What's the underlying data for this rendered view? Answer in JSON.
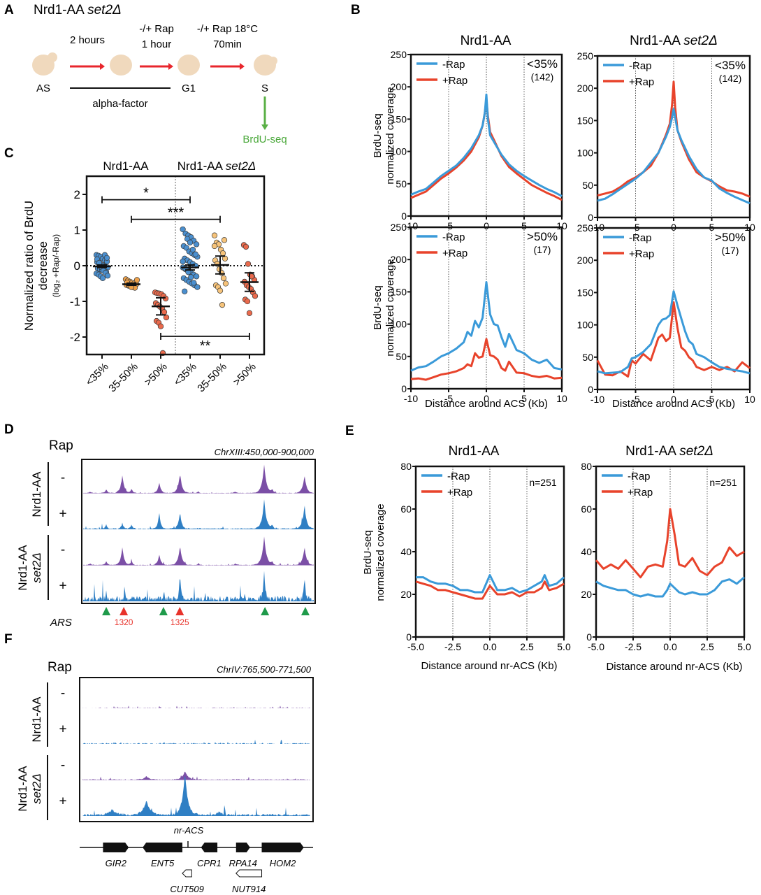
{
  "colors": {
    "minus_rap": "#3a9ad9",
    "plus_rap": "#e8432b",
    "track_purple": "#7b4fa6",
    "track_blue": "#2f7fc4",
    "ars_green": "#1f9a4a",
    "ars_red": "#e8332b",
    "brdu_green": "#5ab046",
    "arrow_red": "#e8262c",
    "cell_fill": "#f0d9bd",
    "dot_blue": "#4a8fcf",
    "dot_orange": "#f0a24a",
    "dot_orange_light": "#f6c37a",
    "dot_red": "#ea6a4c"
  },
  "panels": {
    "A": {
      "label": "A",
      "title_main": "Nrd1-AA ",
      "title_italic": "set2Δ",
      "steps": [
        {
          "top": "2 hours",
          "bottom": ""
        },
        {
          "top": "-/+ Rap",
          "bottom": "1 hour"
        },
        {
          "top": "-/+ Rap 18°C",
          "bottom": "70min"
        }
      ],
      "stages": [
        "AS",
        "",
        "G1",
        "S"
      ],
      "bar_label": "alpha-factor",
      "output_label": "BrdU-seq"
    },
    "B": {
      "label": "B",
      "col_titles": [
        {
          "main": "Nrd1-AA",
          "italic": ""
        },
        {
          "main": "Nrd1-AA ",
          "italic": "set2Δ"
        }
      ],
      "ylabel_line1": "BrdU-seq",
      "ylabel_line2": "normalized coverage",
      "xlabel": "Distance around ACS (Kb)",
      "legend": [
        "-Rap",
        "+Rap"
      ]
    },
    "C": {
      "label": "C",
      "group_titles": [
        {
          "main": "Nrd1-AA",
          "italic": ""
        },
        {
          "main": "Nrd1-AA ",
          "italic": "set2Δ"
        }
      ],
      "ylabel_line1": "Normalized ratio of BrdU",
      "ylabel_line2": "decrease",
      "ylabel_line3": "(log₂ +Rap/-Rap)",
      "significance": [
        {
          "label": "*",
          "from": 0,
          "to": 3,
          "y": 1.85
        },
        {
          "label": "***",
          "from": 1,
          "to": 4,
          "y": 1.3
        },
        {
          "label": "**",
          "from": 2,
          "to": 5,
          "y": -1.98
        }
      ]
    },
    "D": {
      "label": "D",
      "rap_header": "Rap",
      "region": "ChrXIII:450,000-900,000",
      "strain1": "Nrd1-AA",
      "strain2_line1": "Nrd1-AA",
      "strain2_line2": "set2Δ",
      "track_signs": [
        "-",
        "+",
        "-",
        "+"
      ],
      "ars_label": "ARS",
      "ars_markers": [
        {
          "pos": 0.105,
          "color": "green",
          "label": ""
        },
        {
          "pos": 0.18,
          "color": "red",
          "label": "1320"
        },
        {
          "pos": 0.35,
          "color": "green",
          "label": ""
        },
        {
          "pos": 0.42,
          "color": "red",
          "label": "1325"
        },
        {
          "pos": 0.785,
          "color": "green",
          "label": ""
        },
        {
          "pos": 0.958,
          "color": "green",
          "label": ""
        }
      ]
    },
    "E": {
      "label": "E",
      "col_titles": [
        {
          "main": "Nrd1-AA",
          "italic": ""
        },
        {
          "main": "Nrd1-AA ",
          "italic": "set2Δ"
        }
      ],
      "ylabel_line1": "BrdU-seq",
      "ylabel_line2": "normalized coverage",
      "xlabel": "Distance around nr-ACS (Kb)",
      "legend": [
        "-Rap",
        "+Rap"
      ],
      "annotation": "n=251"
    },
    "F": {
      "label": "F",
      "rap_header": "Rap",
      "region": "ChrIV:765,500-771,500",
      "strain1": "Nrd1-AA",
      "strain2_line1": "Nrd1-AA",
      "strain2_line2": "set2Δ",
      "track_signs": [
        "-",
        "+",
        "-",
        "+"
      ],
      "feature_label": "nr-ACS",
      "genes": [
        {
          "name": "GIR2",
          "start": 0.1,
          "end": 0.21,
          "dir": "right"
        },
        {
          "name": "ENT5",
          "start": 0.27,
          "end": 0.44,
          "dir": "left"
        },
        {
          "name": "CPR1",
          "start": 0.52,
          "end": 0.59,
          "dir": "left"
        },
        {
          "name": "RPA14",
          "start": 0.67,
          "end": 0.73,
          "dir": "right"
        },
        {
          "name": "HOM2",
          "start": 0.78,
          "end": 0.96,
          "dir": "right"
        }
      ],
      "noncoding": [
        {
          "name": "CUT509",
          "start": 0.44,
          "end": 0.48,
          "dir": "left"
        },
        {
          "name": "NUT914",
          "start": 0.67,
          "end": 0.78,
          "dir": "left"
        }
      ]
    }
  },
  "chart_data": [
    {
      "id": "B-top-left",
      "type": "line",
      "title": "Nrd1-AA",
      "annotation": "<35%",
      "annotation_n": "(142)",
      "xlabel": "",
      "ylabel": "BrdU-seq normalized coverage",
      "xlim": [
        -10,
        10
      ],
      "ylim": [
        0,
        250
      ],
      "xticks": [
        -10,
        -5,
        0,
        5,
        10
      ],
      "yticks": [
        0,
        50,
        100,
        150,
        200,
        250
      ],
      "vlines": [
        -5,
        0,
        5
      ],
      "x": [
        -10,
        -9,
        -8,
        -7,
        -6,
        -5,
        -4,
        -3,
        -2,
        -1,
        -0.5,
        -0.2,
        0,
        0.2,
        0.5,
        1,
        2,
        3,
        4,
        5,
        6,
        7,
        8,
        9,
        10
      ],
      "series": [
        {
          "name": "-Rap",
          "values": [
            33,
            38,
            42,
            52,
            62,
            70,
            78,
            90,
            105,
            125,
            140,
            160,
            188,
            150,
            125,
            115,
            95,
            80,
            70,
            62,
            55,
            48,
            42,
            37,
            31
          ]
        },
        {
          "name": "+Rap",
          "values": [
            28,
            33,
            38,
            48,
            58,
            66,
            75,
            86,
            100,
            122,
            140,
            160,
            180,
            155,
            130,
            118,
            93,
            76,
            66,
            57,
            48,
            42,
            36,
            31,
            25
          ]
        }
      ]
    },
    {
      "id": "B-top-right",
      "type": "line",
      "title": "Nrd1-AA set2Δ",
      "annotation": "<35%",
      "annotation_n": "(142)",
      "xlim": [
        -10,
        10
      ],
      "ylim": [
        0,
        250
      ],
      "xticks": [
        -10,
        -5,
        0,
        5,
        10
      ],
      "yticks": [
        0,
        50,
        100,
        150,
        200,
        250
      ],
      "vlines": [
        -5,
        0,
        5
      ],
      "x": [
        -10,
        -9,
        -8,
        -7,
        -6,
        -5,
        -4,
        -3,
        -2,
        -1,
        -0.5,
        -0.2,
        0,
        0.2,
        0.5,
        1,
        2,
        3,
        4,
        5,
        6,
        7,
        8,
        9,
        10
      ],
      "series": [
        {
          "name": "-Rap",
          "values": [
            26,
            29,
            36,
            44,
            52,
            60,
            70,
            85,
            100,
            125,
            140,
            155,
            168,
            155,
            135,
            120,
            95,
            75,
            62,
            57,
            45,
            38,
            32,
            27,
            22
          ]
        },
        {
          "name": "+Rap",
          "values": [
            34,
            37,
            40,
            47,
            56,
            62,
            70,
            80,
            100,
            128,
            145,
            175,
            210,
            170,
            135,
            118,
            90,
            70,
            62,
            56,
            48,
            42,
            40,
            37,
            32
          ]
        }
      ]
    },
    {
      "id": "B-bottom-left",
      "type": "line",
      "title": "",
      "annotation": ">50%",
      "annotation_n": "(17)",
      "xlabel": "Distance around ACS (Kb)",
      "xlim": [
        -10,
        10
      ],
      "ylim": [
        0,
        250
      ],
      "xticks": [
        -10,
        -5,
        0,
        5,
        10
      ],
      "yticks": [
        0,
        50,
        100,
        150,
        200,
        250
      ],
      "vlines": [
        -5,
        0,
        5
      ],
      "x": [
        -10,
        -9,
        -8,
        -7,
        -6,
        -5,
        -4,
        -3,
        -2.5,
        -2,
        -1.5,
        -1,
        -0.5,
        0,
        0.5,
        1,
        1.5,
        2,
        2.5,
        3,
        4,
        5,
        6,
        7,
        8,
        9,
        10
      ],
      "series": [
        {
          "name": "-Rap",
          "values": [
            28,
            33,
            35,
            42,
            50,
            55,
            62,
            72,
            88,
            82,
            105,
            95,
            110,
            165,
            115,
            100,
            98,
            80,
            65,
            85,
            60,
            55,
            45,
            40,
            45,
            32,
            30
          ]
        },
        {
          "name": "+Rap",
          "values": [
            15,
            16,
            14,
            18,
            22,
            24,
            27,
            32,
            38,
            35,
            55,
            48,
            50,
            77,
            52,
            50,
            45,
            32,
            28,
            42,
            25,
            24,
            20,
            18,
            20,
            16,
            17
          ]
        }
      ]
    },
    {
      "id": "B-bottom-right",
      "type": "line",
      "title": "",
      "annotation": ">50%",
      "annotation_n": "(17)",
      "xlabel": "Distance around ACS (Kb)",
      "xlim": [
        -10,
        10
      ],
      "ylim": [
        0,
        250
      ],
      "xticks": [
        -10,
        -5,
        0,
        5,
        10
      ],
      "yticks": [
        0,
        50,
        100,
        150,
        200,
        250
      ],
      "vlines": [
        -5,
        0,
        5
      ],
      "x": [
        -10,
        -9,
        -8,
        -7,
        -6,
        -5.5,
        -5,
        -4,
        -3,
        -2,
        -1.5,
        -1,
        -0.5,
        0,
        0.5,
        1,
        1.5,
        2,
        2.5,
        3,
        4,
        5,
        6,
        7,
        8,
        9,
        10
      ],
      "series": [
        {
          "name": "-Rap",
          "values": [
            28,
            25,
            26,
            27,
            35,
            48,
            50,
            58,
            70,
            100,
            108,
            110,
            115,
            152,
            130,
            110,
            90,
            75,
            70,
            55,
            50,
            42,
            35,
            32,
            30,
            28,
            25
          ]
        },
        {
          "name": "+Rap",
          "values": [
            45,
            23,
            22,
            28,
            20,
            45,
            40,
            55,
            45,
            80,
            85,
            75,
            80,
            135,
            95,
            65,
            60,
            50,
            45,
            35,
            30,
            35,
            30,
            35,
            28,
            42,
            33
          ]
        }
      ]
    },
    {
      "id": "C",
      "type": "scatter",
      "title": "",
      "xlabel": "",
      "ylabel": "Normalized ratio of BrdU decrease (log2 +Rap/-Rap)",
      "ylim": [
        -2.5,
        2.5
      ],
      "yticks": [
        -2,
        -1,
        0,
        1,
        2
      ],
      "categories": [
        "<35%",
        "35-50%",
        ">50%",
        "<35%",
        "35-50%",
        ">50%"
      ],
      "groups": [
        "Nrd1-AA",
        "Nrd1-AA",
        "Nrd1-AA",
        "Nrd1-AA set2Δ",
        "Nrd1-AA set2Δ",
        "Nrd1-AA set2Δ"
      ],
      "hline": 0,
      "summary": [
        {
          "mean": -0.02,
          "ci_low": -0.05,
          "ci_high": 0.02
        },
        {
          "mean": -0.52,
          "ci_low": -0.55,
          "ci_high": -0.49
        },
        {
          "mean": -1.14,
          "ci_low": -1.38,
          "ci_high": -0.9
        },
        {
          "mean": -0.05,
          "ci_low": -0.12,
          "ci_high": 0.02
        },
        {
          "mean": 0.02,
          "ci_low": -0.23,
          "ci_high": 0.27
        },
        {
          "mean": -0.46,
          "ci_low": -0.72,
          "ci_high": -0.2
        }
      ],
      "points": [
        [
          0.3,
          0.28,
          0.25,
          0.2,
          0.15,
          0.12,
          0.1,
          0.05,
          0.02,
          0,
          -0.02,
          -0.05,
          -0.08,
          -0.1,
          -0.12,
          -0.15,
          -0.18,
          -0.22,
          -0.25,
          -0.3,
          -0.35,
          0.3,
          0.22,
          0.18,
          0.08,
          -0.04,
          -0.14,
          -0.2,
          -0.28
        ],
        [
          -0.38,
          -0.42,
          -0.45,
          -0.48,
          -0.5,
          -0.52,
          -0.54,
          -0.56,
          -0.58,
          -0.6,
          -0.62,
          -0.4,
          -0.47,
          -0.55,
          -0.6
        ],
        [
          -0.75,
          -0.77,
          -0.78,
          -0.8,
          -0.85,
          -0.92,
          -1.05,
          -1.1,
          -1.15,
          -1.2,
          -1.3,
          -1.45,
          -1.55,
          -1.6,
          -1.7,
          -2.45
        ],
        [
          1.02,
          0.9,
          0.85,
          0.8,
          0.7,
          0.6,
          0.55,
          0.5,
          0.4,
          0.35,
          0.3,
          0.25,
          0.2,
          0.15,
          0.1,
          0.05,
          0,
          -0.05,
          -0.1,
          -0.15,
          -0.2,
          -0.25,
          -0.3,
          -0.35,
          -0.4,
          -0.45,
          -0.5,
          -0.55,
          -0.6,
          -0.72,
          0.75,
          0.65,
          0.45,
          0.32,
          0.12,
          -0.08,
          -0.18,
          -0.32,
          -0.48
        ],
        [
          0.85,
          0.65,
          0.6,
          0.45,
          0.35,
          0.2,
          0.15,
          0.05,
          -0.1,
          -0.2,
          -0.35,
          -0.5,
          -0.55,
          -0.6,
          -0.7,
          -1.1,
          0.72,
          0.55
        ],
        [
          0.58,
          0.53,
          0.05,
          -0.25,
          -0.3,
          -0.4,
          -0.45,
          -0.55,
          -0.6,
          -0.65,
          -0.75,
          -0.85,
          -0.95,
          -1.0,
          -1.33,
          -0.3
        ]
      ]
    },
    {
      "id": "E-left",
      "type": "line",
      "title": "Nrd1-AA",
      "annotation": "n=251",
      "xlabel": "Distance around nr-ACS (Kb)",
      "ylabel": "BrdU-seq normalized coverage",
      "xlim": [
        -5,
        5
      ],
      "ylim": [
        0,
        80
      ],
      "xticks": [
        "-5.0",
        "-2.5",
        "0.0",
        "2.5",
        "5.0"
      ],
      "yticks": [
        0,
        20,
        40,
        60,
        80
      ],
      "vlines": [
        -2.5,
        0,
        2.5
      ],
      "x": [
        -5,
        -4.5,
        -4,
        -3.5,
        -3,
        -2.5,
        -2,
        -1.5,
        -1,
        -0.5,
        0,
        0.5,
        1,
        1.5,
        2,
        2.5,
        3,
        3.5,
        3.7,
        4,
        4.5,
        5
      ],
      "series": [
        {
          "name": "-Rap",
          "values": [
            28,
            28,
            26,
            25,
            25,
            24,
            22,
            22,
            21,
            21,
            29,
            22,
            22,
            23,
            21,
            22,
            24,
            26,
            29,
            24,
            25,
            28
          ]
        },
        {
          "name": "+Rap",
          "values": [
            26,
            25,
            24,
            22,
            22,
            21,
            20,
            19,
            18,
            18,
            24,
            20,
            20,
            21,
            19,
            21,
            21,
            23,
            26,
            22,
            23,
            25
          ]
        }
      ]
    },
    {
      "id": "E-right",
      "type": "line",
      "title": "Nrd1-AA set2Δ",
      "annotation": "n=251",
      "xlabel": "Distance around nr-ACS (Kb)",
      "xlim": [
        -5,
        5
      ],
      "ylim": [
        0,
        80
      ],
      "xticks": [
        "-5.0",
        "-2.5",
        "0.0",
        "2.5",
        "5.0"
      ],
      "yticks": [
        0,
        20,
        40,
        60,
        80
      ],
      "vlines": [
        -2.5,
        0,
        2.5
      ],
      "x": [
        -5,
        -4.5,
        -4,
        -3.5,
        -3,
        -2.5,
        -2,
        -1.5,
        -1,
        -0.5,
        -0.2,
        0,
        0.3,
        0.6,
        1,
        1.5,
        2,
        2.5,
        3,
        3.5,
        4,
        4.5,
        5
      ],
      "series": [
        {
          "name": "-Rap",
          "values": [
            26,
            24,
            23,
            22,
            22,
            20,
            19,
            20,
            19,
            19,
            22,
            25,
            23,
            21,
            20,
            21,
            20,
            20,
            22,
            26,
            27,
            25,
            28
          ]
        },
        {
          "name": "+Rap",
          "values": [
            36,
            32,
            34,
            32,
            36,
            32,
            28,
            33,
            34,
            33,
            45,
            60,
            48,
            34,
            33,
            37,
            31,
            29,
            33,
            35,
            42,
            38,
            40
          ]
        }
      ]
    }
  ]
}
